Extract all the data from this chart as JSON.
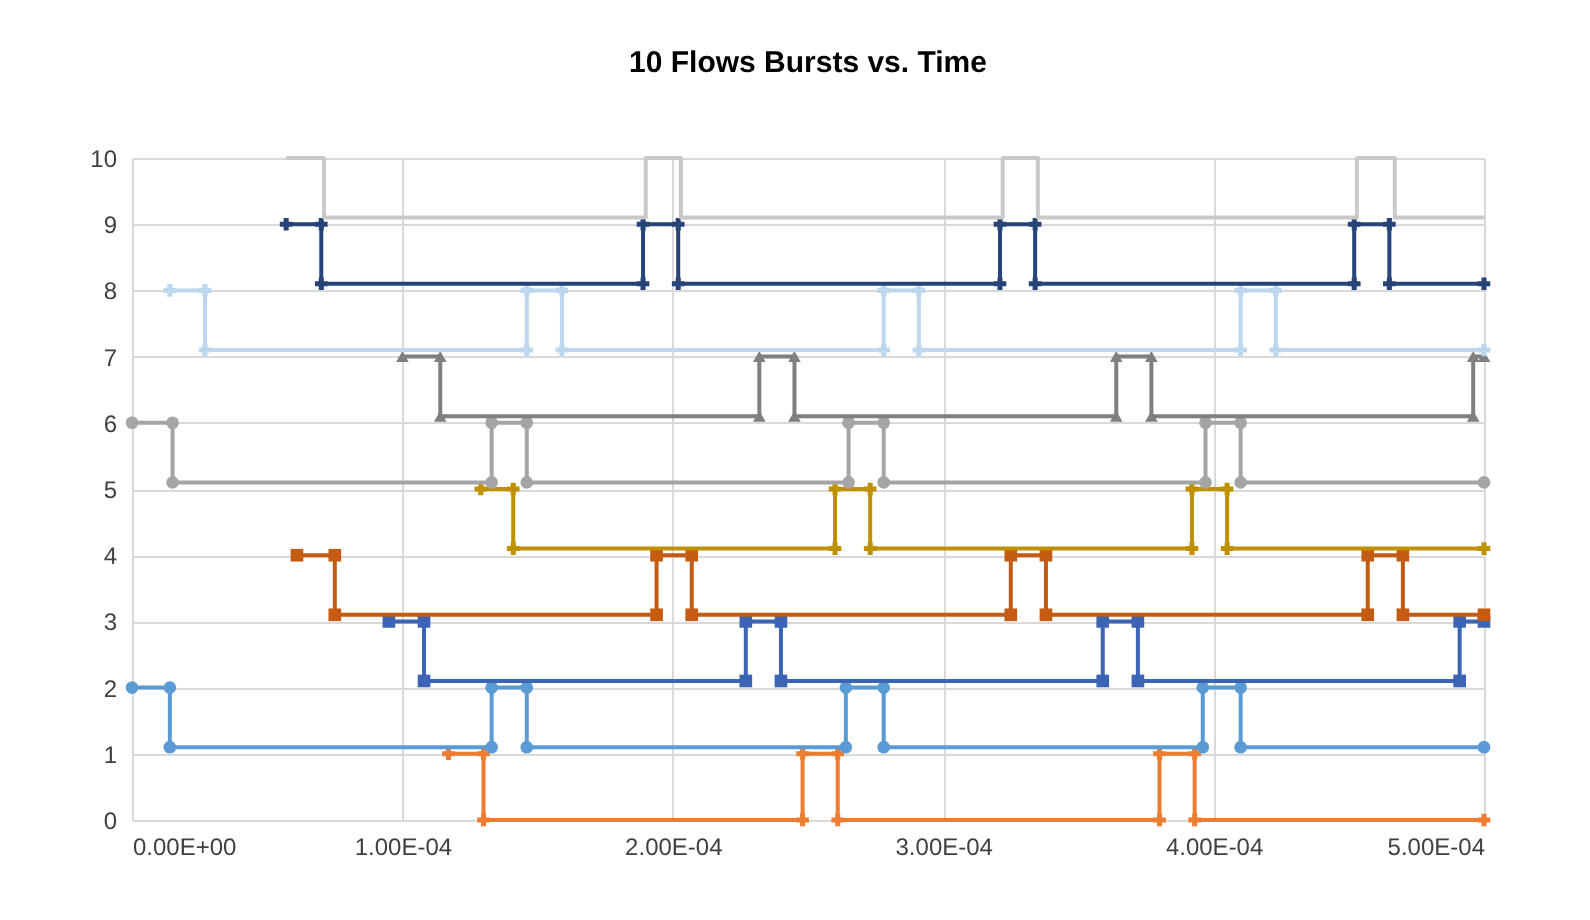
{
  "chart_data": {
    "type": "line",
    "title": "10 Flows Bursts vs. Time",
    "grid": true,
    "line_style": "solid",
    "xlim": [
      0,
      0.0005
    ],
    "xticks": [
      {
        "value": 0,
        "label": "0.00E+00"
      },
      {
        "value": 0.0001,
        "label": "1.00E-04"
      },
      {
        "value": 0.0002,
        "label": "2.00E-04"
      },
      {
        "value": 0.0003,
        "label": "3.00E-04"
      },
      {
        "value": 0.0004,
        "label": "4.00E-04"
      },
      {
        "value": 0.0005,
        "label": "5.00E-04"
      }
    ],
    "ylim": [
      0,
      10
    ],
    "yticks": [
      0,
      1,
      2,
      3,
      4,
      5,
      6,
      7,
      8,
      9,
      10
    ],
    "series": [
      {
        "color": "#ed7d31",
        "marker": "cross",
        "x": [
          0.000117,
          0.00013,
          0.00013,
          0.000248,
          0.000248,
          0.000261,
          0.000261,
          0.00038,
          0.00038,
          0.000393,
          0.000393,
          0.0005
        ],
        "values": [
          1,
          1,
          0,
          0,
          1,
          1,
          0,
          0,
          1,
          1,
          0,
          0
        ]
      },
      {
        "color": "#5b9bd5",
        "marker": "circle",
        "x": [
          0,
          1.4e-05,
          1.4e-05,
          0.000133,
          0.000133,
          0.000146,
          0.000146,
          0.000264,
          0.000264,
          0.000278,
          0.000278,
          0.000396,
          0.000396,
          0.00041,
          0.00041,
          0.0005
        ],
        "values": [
          2,
          2,
          1.1,
          1.1,
          2,
          2,
          1.1,
          1.1,
          2,
          2,
          1.1,
          1.1,
          2,
          2,
          1.1,
          1.1
        ]
      },
      {
        "color": "#3b64b4",
        "marker": "square",
        "x": [
          9.5e-05,
          0.000108,
          0.000108,
          0.000227,
          0.000227,
          0.00024,
          0.00024,
          0.000359,
          0.000359,
          0.000372,
          0.000372,
          0.000491,
          0.000491,
          0.0005
        ],
        "values": [
          3,
          3,
          2.1,
          2.1,
          3,
          3,
          2.1,
          2.1,
          3,
          3,
          2.1,
          2.1,
          3,
          3
        ]
      },
      {
        "color": "#c55a11",
        "marker": "square",
        "x": [
          6.1e-05,
          7.5e-05,
          7.5e-05,
          0.000194,
          0.000194,
          0.000207,
          0.000207,
          0.000325,
          0.000325,
          0.000338,
          0.000338,
          0.000457,
          0.000457,
          0.00047,
          0.00047,
          0.0005
        ],
        "values": [
          4,
          4,
          3.1,
          3.1,
          4,
          4,
          3.1,
          3.1,
          4,
          4,
          3.1,
          3.1,
          4,
          4,
          3.1,
          3.1
        ]
      },
      {
        "color": "#bf9000",
        "marker": "cross",
        "x": [
          0.000129,
          0.000141,
          0.000141,
          0.00026,
          0.00026,
          0.000273,
          0.000273,
          0.000392,
          0.000392,
          0.000405,
          0.000405,
          0.0005
        ],
        "values": [
          5,
          5,
          4.1,
          4.1,
          5,
          5,
          4.1,
          4.1,
          5,
          5,
          4.1,
          4.1
        ]
      },
      {
        "color": "#a5a5a5",
        "marker": "circle",
        "x": [
          0,
          1.5e-05,
          1.5e-05,
          0.000133,
          0.000133,
          0.000146,
          0.000146,
          0.000265,
          0.000265,
          0.000278,
          0.000278,
          0.000397,
          0.000397,
          0.00041,
          0.00041,
          0.0005
        ],
        "values": [
          6,
          6,
          5.1,
          5.1,
          6,
          6,
          5.1,
          5.1,
          6,
          6,
          5.1,
          5.1,
          6,
          6,
          5.1,
          5.1
        ]
      },
      {
        "color": "#7f7f7f",
        "marker": "triangle",
        "x": [
          0.0001,
          0.000114,
          0.000114,
          0.000232,
          0.000232,
          0.000245,
          0.000245,
          0.000364,
          0.000364,
          0.000377,
          0.000377,
          0.000496,
          0.000496,
          0.0005
        ],
        "values": [
          7,
          7,
          6.1,
          6.1,
          7,
          7,
          6.1,
          6.1,
          7,
          7,
          6.1,
          6.1,
          7,
          7
        ]
      },
      {
        "color": "#bdd7ee",
        "marker": "cross",
        "x": [
          1.4e-05,
          2.7e-05,
          2.7e-05,
          0.000146,
          0.000146,
          0.000159,
          0.000159,
          0.000278,
          0.000278,
          0.000291,
          0.000291,
          0.00041,
          0.00041,
          0.000423,
          0.000423,
          0.0005
        ],
        "values": [
          8,
          8,
          7.1,
          7.1,
          8,
          8,
          7.1,
          7.1,
          8,
          8,
          7.1,
          7.1,
          8,
          8,
          7.1,
          7.1
        ]
      },
      {
        "color": "#264478",
        "marker": "cross",
        "x": [
          5.7e-05,
          7e-05,
          7e-05,
          0.000189,
          0.000189,
          0.000202,
          0.000202,
          0.000321,
          0.000321,
          0.000334,
          0.000334,
          0.000452,
          0.000452,
          0.000465,
          0.000465,
          0.0005
        ],
        "values": [
          9,
          9,
          8.1,
          8.1,
          9,
          9,
          8.1,
          8.1,
          9,
          9,
          8.1,
          8.1,
          9,
          9,
          8.1,
          8.1
        ]
      },
      {
        "color": "#c9c9c9",
        "marker": "none",
        "x": [
          5.7e-05,
          7.1e-05,
          7.1e-05,
          0.00019,
          0.00019,
          0.000203,
          0.000203,
          0.000322,
          0.000322,
          0.000335,
          0.000335,
          0.000453,
          0.000453,
          0.000467,
          0.000467,
          0.0005
        ],
        "values": [
          10,
          10,
          9.1,
          9.1,
          10,
          10,
          9.1,
          9.1,
          10,
          10,
          9.1,
          9.1,
          10,
          10,
          9.1,
          9.1
        ]
      }
    ]
  }
}
